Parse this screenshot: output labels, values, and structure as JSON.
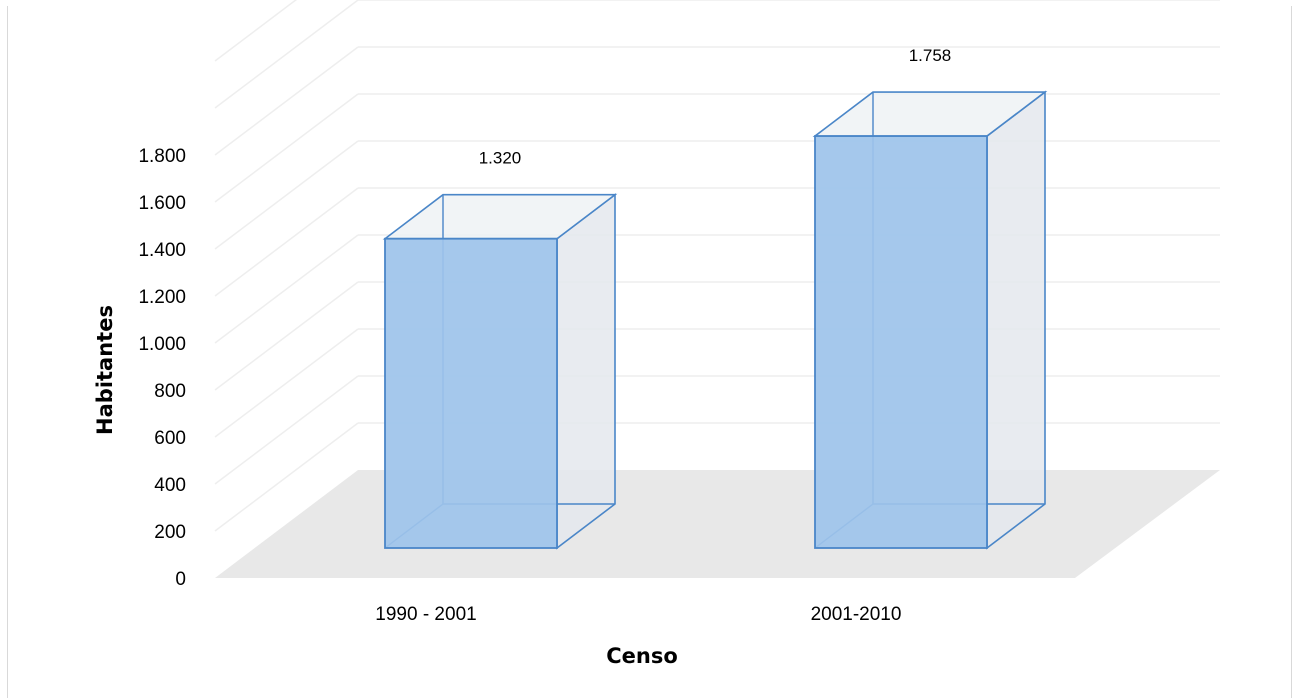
{
  "chart_data": {
    "type": "bar",
    "style": "3d-column",
    "categories": [
      "1990 - 2001",
      "2001-2010"
    ],
    "series": [
      {
        "values": [
          1320,
          1758
        ],
        "labels": [
          "1.320",
          "1.758"
        ]
      }
    ],
    "xlabel": "Censo",
    "ylabel": "Habitantes",
    "ylim": [
      0,
      1800
    ],
    "yticks": [
      0,
      200,
      400,
      600,
      800,
      1000,
      1200,
      1400,
      1600,
      1800
    ],
    "ytick_labels": [
      "0",
      "200",
      "400",
      "600",
      "800",
      "1.000",
      "1.200",
      "1.400",
      "1.600",
      "1.800"
    ],
    "grid": true,
    "legend": "none",
    "colors": {
      "bar_fill": "#9dc3ea",
      "bar_stroke": "#4a86c8",
      "side_fill": "#e4e8ed",
      "floor": "#e8e8e8",
      "grid": "#eeeeee"
    }
  }
}
